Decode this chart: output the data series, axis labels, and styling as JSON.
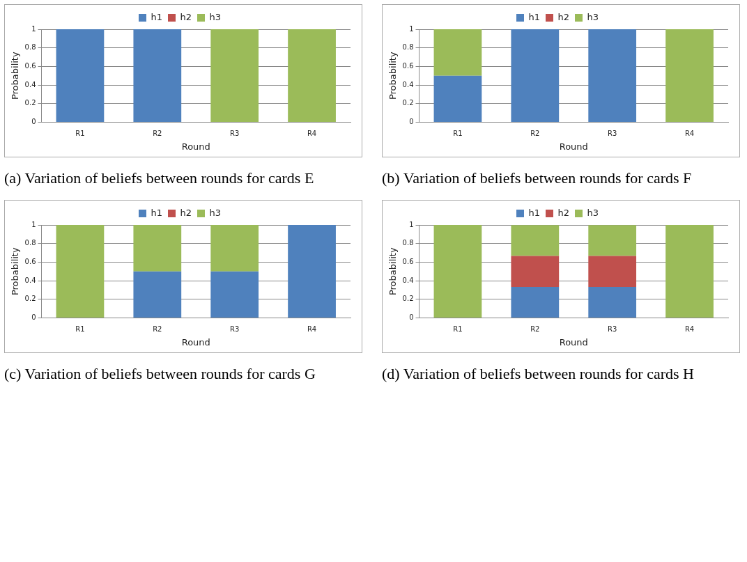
{
  "chart_data": [
    {
      "type": "bar",
      "stacked": true,
      "xlabel": "Round",
      "ylabel": "Probability",
      "categories": [
        "R1",
        "R2",
        "R3",
        "R4"
      ],
      "ylim": [
        0,
        1
      ],
      "yticks": [
        0,
        0.2,
        0.4,
        0.6,
        0.8,
        1
      ],
      "grid": "y",
      "legend": "top",
      "annotations": [
        "(a) Variation of beliefs between rounds for cards E"
      ],
      "series": [
        {
          "name": "h1",
          "color": "#4f81bd",
          "values": [
            1,
            1,
            0,
            0
          ]
        },
        {
          "name": "h2",
          "color": "#c0504d",
          "values": [
            0,
            0,
            0,
            0
          ]
        },
        {
          "name": "h3",
          "color": "#9bbb59",
          "values": [
            0,
            0,
            1,
            1
          ]
        }
      ]
    },
    {
      "type": "bar",
      "stacked": true,
      "xlabel": "Round",
      "ylabel": "Probability",
      "categories": [
        "R1",
        "R2",
        "R3",
        "R4"
      ],
      "ylim": [
        0,
        1
      ],
      "yticks": [
        0,
        0.2,
        0.4,
        0.6,
        0.8,
        1
      ],
      "grid": "y",
      "legend": "top",
      "annotations": [
        "(b) Variation of beliefs between rounds for cards F"
      ],
      "series": [
        {
          "name": "h1",
          "color": "#4f81bd",
          "values": [
            0.5,
            1,
            1,
            0
          ]
        },
        {
          "name": "h2",
          "color": "#c0504d",
          "values": [
            0,
            0,
            0,
            0
          ]
        },
        {
          "name": "h3",
          "color": "#9bbb59",
          "values": [
            0.5,
            0,
            0,
            1
          ]
        }
      ]
    },
    {
      "type": "bar",
      "stacked": true,
      "xlabel": "Round",
      "ylabel": "Probability",
      "categories": [
        "R1",
        "R2",
        "R3",
        "R4"
      ],
      "ylim": [
        0,
        1
      ],
      "yticks": [
        0,
        0.2,
        0.4,
        0.6,
        0.8,
        1
      ],
      "grid": "y",
      "legend": "top",
      "annotations": [
        "(c) Variation of beliefs between rounds for cards G"
      ],
      "series": [
        {
          "name": "h1",
          "color": "#4f81bd",
          "values": [
            0,
            0.5,
            0.5,
            1
          ]
        },
        {
          "name": "h2",
          "color": "#c0504d",
          "values": [
            0,
            0,
            0,
            0
          ]
        },
        {
          "name": "h3",
          "color": "#9bbb59",
          "values": [
            1,
            0.5,
            0.5,
            0
          ]
        }
      ]
    },
    {
      "type": "bar",
      "stacked": true,
      "xlabel": "Round",
      "ylabel": "Probability",
      "categories": [
        "R1",
        "R2",
        "R3",
        "R4"
      ],
      "ylim": [
        0,
        1
      ],
      "yticks": [
        0,
        0.2,
        0.4,
        0.6,
        0.8,
        1
      ],
      "grid": "y",
      "legend": "top",
      "annotations": [
        "(d) Variation of beliefs between rounds for cards H"
      ],
      "series": [
        {
          "name": "h1",
          "color": "#4f81bd",
          "values": [
            0,
            0.333,
            0.333,
            0
          ]
        },
        {
          "name": "h2",
          "color": "#c0504d",
          "values": [
            0,
            0.333,
            0.333,
            0
          ]
        },
        {
          "name": "h3",
          "color": "#9bbb59",
          "values": [
            1,
            0.333,
            0.333,
            1
          ]
        }
      ]
    }
  ]
}
